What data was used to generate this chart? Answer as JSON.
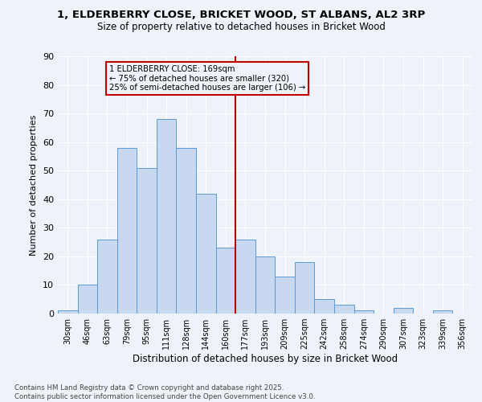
{
  "title": "1, ELDERBERRY CLOSE, BRICKET WOOD, ST ALBANS, AL2 3RP",
  "subtitle": "Size of property relative to detached houses in Bricket Wood",
  "xlabel": "Distribution of detached houses by size in Bricket Wood",
  "ylabel": "Number of detached properties",
  "bar_color": "#c8d8f0",
  "bar_edge_color": "#5b9bd5",
  "categories": [
    "30sqm",
    "46sqm",
    "63sqm",
    "79sqm",
    "95sqm",
    "111sqm",
    "128sqm",
    "144sqm",
    "160sqm",
    "177sqm",
    "193sqm",
    "209sqm",
    "225sqm",
    "242sqm",
    "258sqm",
    "274sqm",
    "290sqm",
    "307sqm",
    "323sqm",
    "339sqm",
    "356sqm"
  ],
  "values": [
    1,
    10,
    26,
    58,
    51,
    68,
    58,
    42,
    23,
    26,
    20,
    13,
    18,
    5,
    3,
    1,
    0,
    2,
    0,
    1,
    0
  ],
  "property_line_x": 8.5,
  "property_line_color": "#c00000",
  "annotation_text": "1 ELDERBERRY CLOSE: 169sqm\n← 75% of detached houses are smaller (320)\n25% of semi-detached houses are larger (106) →",
  "annotation_box_color": "#c00000",
  "ylim": [
    0,
    90
  ],
  "yticks": [
    0,
    10,
    20,
    30,
    40,
    50,
    60,
    70,
    80,
    90
  ],
  "footnote": "Contains HM Land Registry data © Crown copyright and database right 2025.\nContains public sector information licensed under the Open Government Licence v3.0.",
  "background_color": "#eef3fa",
  "grid_color": "#ffffff"
}
